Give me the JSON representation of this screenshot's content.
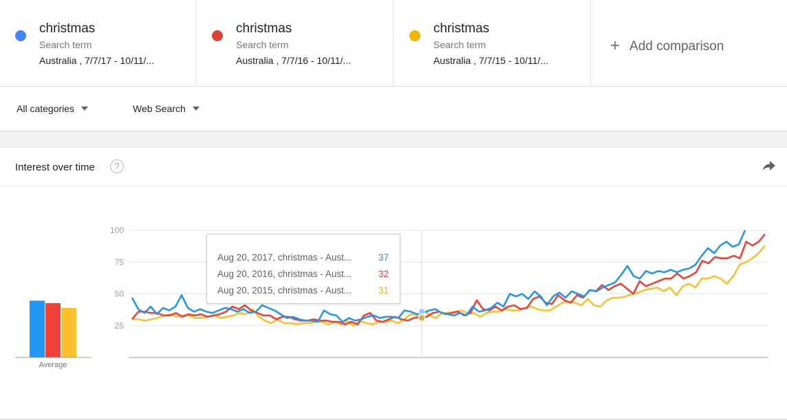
{
  "terms": [
    {
      "name": "christmas",
      "kind": "Search term",
      "range": "Australia , 7/7/17 - 10/11/...",
      "color": "#4285f4"
    },
    {
      "name": "christmas",
      "kind": "Search term",
      "range": "Australia , 7/7/16 - 10/11/...",
      "color": "#db4437"
    },
    {
      "name": "christmas",
      "kind": "Search term",
      "range": "Australia , 7/7/15 - 10/11/...",
      "color": "#f4b400"
    }
  ],
  "add_comparison": "Add comparison",
  "filters": {
    "category": "All categories",
    "search_type": "Web Search"
  },
  "card": {
    "title": "Interest over time",
    "help_icon": "?"
  },
  "tooltip": {
    "rows": [
      {
        "label": "Aug 20, 2017, christmas - Aust...",
        "value": "37",
        "color": "#4285f4"
      },
      {
        "label": "Aug 20, 2016, christmas - Aust...",
        "value": "32",
        "color": "#db4437"
      },
      {
        "label": "Aug 20, 2015, christmas - Aust...",
        "value": "31",
        "color": "#f4b400"
      }
    ]
  },
  "chart_data": {
    "type": "line",
    "ylim": [
      0,
      100
    ],
    "yticks": [
      25,
      50,
      75,
      100
    ],
    "average_label": "Average",
    "averages": [
      47,
      45,
      41
    ],
    "colors": [
      "#2196f3",
      "#ef4136",
      "#fbc02d"
    ],
    "series": [
      {
        "name": "christmas",
        "values": [
          47,
          38,
          35,
          40,
          34,
          39,
          37,
          40,
          49,
          39,
          36,
          38,
          36,
          35,
          37,
          39,
          38,
          36,
          38,
          35,
          36,
          41,
          39,
          37,
          34,
          31,
          32,
          30,
          29,
          29,
          28,
          37,
          34,
          33,
          28,
          31,
          29,
          30,
          32,
          33,
          31,
          32,
          32,
          31,
          37,
          36,
          34,
          35,
          37,
          38,
          35,
          34,
          33,
          35,
          33,
          40,
          36,
          37,
          39,
          43,
          40,
          50,
          48,
          50,
          46,
          52,
          48,
          41,
          48,
          51,
          47,
          52,
          50,
          48,
          53,
          52,
          55,
          57,
          59,
          65,
          72,
          64,
          62,
          68,
          66,
          68,
          67,
          69,
          67,
          69,
          70,
          73,
          80,
          86,
          82,
          88,
          91,
          87,
          89,
          100
        ]
      },
      {
        "name": "christmas",
        "values": [
          30,
          36,
          36,
          35,
          35,
          33,
          33,
          35,
          32,
          34,
          33,
          34,
          32,
          33,
          34,
          36,
          40,
          38,
          41,
          37,
          35,
          33,
          33,
          30,
          32,
          32,
          30,
          29,
          29,
          30,
          29,
          29,
          28,
          28,
          26,
          28,
          26,
          33,
          35,
          29,
          28,
          30,
          32,
          30,
          29,
          31,
          32,
          32,
          35,
          36,
          34,
          35,
          36,
          33,
          35,
          45,
          38,
          37,
          40,
          37,
          40,
          41,
          38,
          39,
          46,
          48,
          43,
          42,
          49,
          45,
          43,
          49,
          47,
          53,
          52,
          57,
          53,
          56,
          58,
          54,
          50,
          60,
          56,
          58,
          60,
          62,
          62,
          66,
          62,
          64,
          67,
          76,
          74,
          79,
          78,
          78,
          80,
          78,
          91,
          88,
          91,
          97
        ]
      },
      {
        "name": "christmas",
        "values": [
          30,
          30,
          29,
          30,
          31,
          33,
          34,
          32,
          33,
          33,
          31,
          31,
          32,
          33,
          31,
          32,
          33,
          35,
          34,
          38,
          32,
          29,
          27,
          30,
          27,
          27,
          26,
          27,
          27,
          28,
          28,
          26,
          28,
          26,
          29,
          25,
          29,
          27,
          26,
          28,
          28,
          29,
          27,
          30,
          34,
          33,
          38,
          33,
          31,
          35,
          35,
          36,
          37,
          35,
          35,
          32,
          35,
          36,
          36,
          38,
          37,
          37,
          39,
          40,
          38,
          37,
          37,
          40,
          43,
          44,
          43,
          41,
          46,
          41,
          40,
          45,
          47,
          47,
          48,
          50,
          51,
          53,
          54,
          55,
          52,
          55,
          49,
          56,
          58,
          55,
          62,
          62,
          64,
          62,
          58,
          64,
          73,
          75,
          78,
          82,
          88
        ]
      }
    ]
  }
}
